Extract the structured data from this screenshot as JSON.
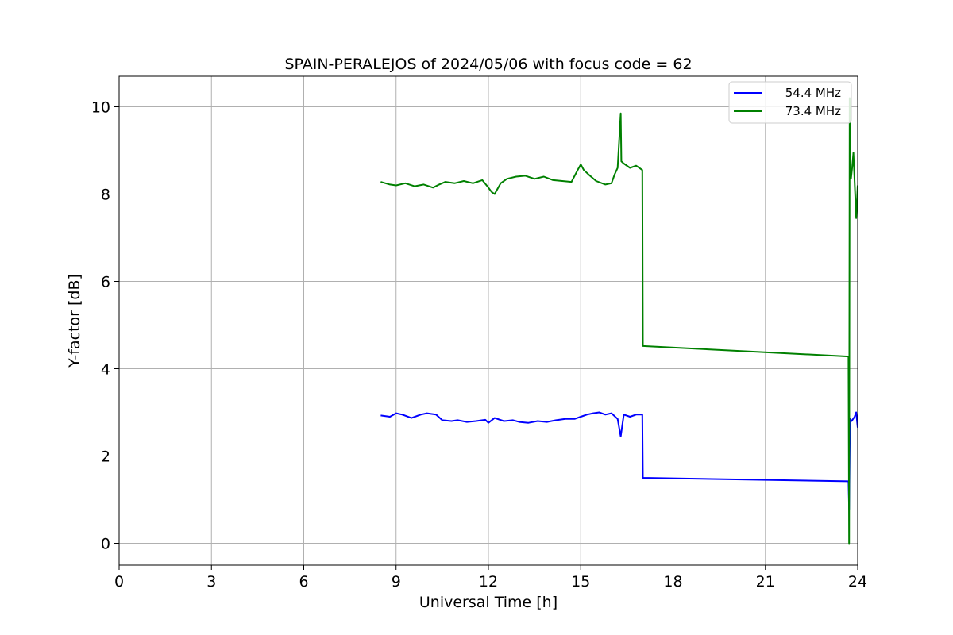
{
  "chart_data": {
    "type": "line",
    "title": "SPAIN-PERALEJOS of 2024/05/06 with focus code = 62",
    "xlabel": "Universal Time [h]",
    "ylabel": "Y-factor [dB]",
    "xlim": [
      0,
      24
    ],
    "ylim": [
      -0.5,
      10.7
    ],
    "xticks": [
      0,
      3,
      6,
      9,
      12,
      15,
      18,
      21,
      24
    ],
    "yticks": [
      0,
      2,
      4,
      6,
      8,
      10
    ],
    "grid": true,
    "legend_position": "top-right",
    "series": [
      {
        "name": "54.4 MHz",
        "color": "#0000ff",
        "x": [
          8.5,
          8.8,
          9.0,
          9.2,
          9.5,
          9.8,
          10.0,
          10.3,
          10.5,
          10.8,
          11.0,
          11.3,
          11.6,
          11.9,
          12.0,
          12.2,
          12.5,
          12.8,
          13.0,
          13.3,
          13.6,
          13.9,
          14.2,
          14.5,
          14.8,
          15.0,
          15.2,
          15.4,
          15.6,
          15.8,
          16.0,
          16.2,
          16.3,
          16.4,
          16.6,
          16.8,
          17.0,
          17.02,
          23.7,
          23.72,
          23.75,
          23.8,
          23.85,
          23.9,
          23.95,
          24.0
        ],
        "y": [
          2.93,
          2.9,
          2.98,
          2.95,
          2.87,
          2.95,
          2.98,
          2.95,
          2.82,
          2.8,
          2.82,
          2.78,
          2.8,
          2.83,
          2.76,
          2.87,
          2.8,
          2.82,
          2.78,
          2.76,
          2.8,
          2.78,
          2.82,
          2.85,
          2.85,
          2.9,
          2.95,
          2.98,
          3.0,
          2.95,
          2.98,
          2.85,
          2.45,
          2.95,
          2.9,
          2.95,
          2.95,
          1.5,
          1.42,
          0.78,
          2.85,
          2.8,
          2.85,
          2.9,
          3.0,
          2.65
        ]
      },
      {
        "name": "73.4 MHz",
        "color": "#008000",
        "x": [
          8.5,
          8.8,
          9.0,
          9.3,
          9.6,
          9.9,
          10.2,
          10.4,
          10.6,
          10.9,
          11.2,
          11.5,
          11.8,
          12.0,
          12.1,
          12.2,
          12.4,
          12.6,
          12.9,
          13.2,
          13.5,
          13.8,
          14.1,
          14.4,
          14.7,
          14.9,
          15.0,
          15.1,
          15.3,
          15.5,
          15.8,
          16.0,
          16.1,
          16.2,
          16.3,
          16.32,
          16.4,
          16.6,
          16.8,
          17.0,
          17.02,
          23.7,
          23.72,
          23.74,
          23.76,
          23.78,
          23.82,
          23.86,
          23.9,
          23.95,
          24.0
        ],
        "y": [
          8.28,
          8.22,
          8.2,
          8.25,
          8.18,
          8.22,
          8.15,
          8.22,
          8.28,
          8.25,
          8.3,
          8.25,
          8.32,
          8.15,
          8.05,
          8.0,
          8.25,
          8.35,
          8.4,
          8.42,
          8.35,
          8.4,
          8.32,
          8.3,
          8.28,
          8.55,
          8.68,
          8.55,
          8.42,
          8.3,
          8.22,
          8.25,
          8.45,
          8.6,
          9.85,
          8.75,
          8.7,
          8.6,
          8.65,
          8.55,
          4.52,
          4.28,
          0.0,
          10.2,
          8.5,
          8.35,
          8.6,
          8.95,
          8.3,
          7.45,
          8.2
        ]
      }
    ]
  }
}
